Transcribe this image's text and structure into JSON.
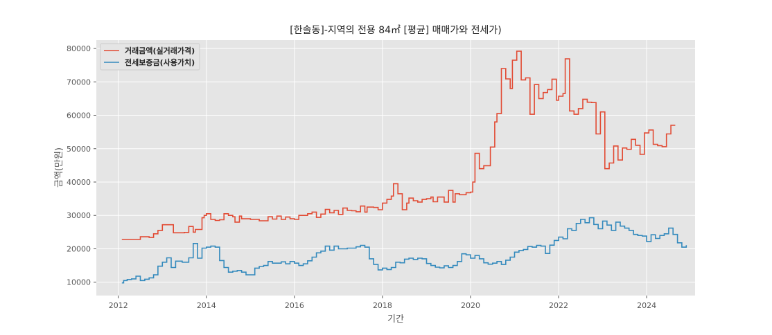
{
  "chart_data": {
    "type": "line",
    "step": true,
    "title": "[한솔동]-지역의 전용 84㎡ [평균] 매매가와 전세가)",
    "xlabel": "기간",
    "ylabel": "금액(만원)",
    "xlim": [
      2011.5,
      2025.1
    ],
    "ylim": [
      6000,
      82500
    ],
    "xticks": [
      2012,
      2014,
      2016,
      2018,
      2020,
      2022,
      2024
    ],
    "xtick_labels": [
      "2012",
      "2014",
      "2016",
      "2018",
      "2020",
      "2022",
      "2024"
    ],
    "yticks": [
      10000,
      20000,
      30000,
      40000,
      50000,
      60000,
      70000,
      80000
    ],
    "ytick_labels": [
      "10000",
      "20000",
      "30000",
      "40000",
      "50000",
      "60000",
      "70000",
      "80000"
    ],
    "grid": true,
    "legend_position": "upper-left",
    "colors": {
      "plot_background": "#e5e5e5",
      "grid": "#ffffff"
    },
    "series": [
      {
        "name": "거래금액(실거래가격)",
        "color": "#e24a33",
        "points": [
          [
            2012.08,
            22800
          ],
          [
            2012.5,
            23600
          ],
          [
            2012.7,
            23400
          ],
          [
            2012.8,
            24500
          ],
          [
            2012.9,
            25500
          ],
          [
            2013.0,
            27200
          ],
          [
            2013.25,
            24800
          ],
          [
            2013.5,
            24900
          ],
          [
            2013.6,
            26700
          ],
          [
            2013.7,
            25000
          ],
          [
            2013.75,
            25800
          ],
          [
            2013.9,
            29300
          ],
          [
            2013.95,
            30000
          ],
          [
            2014.0,
            30500
          ],
          [
            2014.1,
            28800
          ],
          [
            2014.2,
            28500
          ],
          [
            2014.3,
            28700
          ],
          [
            2014.4,
            30500
          ],
          [
            2014.5,
            30000
          ],
          [
            2014.6,
            29600
          ],
          [
            2014.65,
            28000
          ],
          [
            2014.75,
            29800
          ],
          [
            2014.8,
            29000
          ],
          [
            2015.0,
            28800
          ],
          [
            2015.2,
            28400
          ],
          [
            2015.4,
            29600
          ],
          [
            2015.5,
            28900
          ],
          [
            2015.6,
            29800
          ],
          [
            2015.7,
            28800
          ],
          [
            2015.8,
            29500
          ],
          [
            2015.9,
            29000
          ],
          [
            2016.0,
            28800
          ],
          [
            2016.1,
            30000
          ],
          [
            2016.3,
            30500
          ],
          [
            2016.4,
            31000
          ],
          [
            2016.5,
            29400
          ],
          [
            2016.6,
            30400
          ],
          [
            2016.7,
            31800
          ],
          [
            2016.8,
            30800
          ],
          [
            2016.9,
            31500
          ],
          [
            2017.0,
            30300
          ],
          [
            2017.1,
            32200
          ],
          [
            2017.2,
            31500
          ],
          [
            2017.3,
            31400
          ],
          [
            2017.4,
            31100
          ],
          [
            2017.5,
            32800
          ],
          [
            2017.6,
            31000
          ],
          [
            2017.65,
            32500
          ],
          [
            2017.8,
            32400
          ],
          [
            2017.9,
            31700
          ],
          [
            2018.0,
            33700
          ],
          [
            2018.1,
            34800
          ],
          [
            2018.2,
            35800
          ],
          [
            2018.25,
            39500
          ],
          [
            2018.35,
            36500
          ],
          [
            2018.45,
            31700
          ],
          [
            2018.55,
            33700
          ],
          [
            2018.6,
            35200
          ],
          [
            2018.7,
            34400
          ],
          [
            2018.8,
            34000
          ],
          [
            2018.9,
            34800
          ],
          [
            2019.0,
            35000
          ],
          [
            2019.1,
            35500
          ],
          [
            2019.15,
            34100
          ],
          [
            2019.25,
            35500
          ],
          [
            2019.4,
            34000
          ],
          [
            2019.5,
            37500
          ],
          [
            2019.6,
            34000
          ],
          [
            2019.65,
            36500
          ],
          [
            2019.75,
            36200
          ],
          [
            2019.9,
            36800
          ],
          [
            2020.0,
            37000
          ],
          [
            2020.05,
            40000
          ],
          [
            2020.1,
            48600
          ],
          [
            2020.2,
            44000
          ],
          [
            2020.3,
            44900
          ],
          [
            2020.45,
            50500
          ],
          [
            2020.55,
            58000
          ],
          [
            2020.6,
            60500
          ],
          [
            2020.7,
            74000
          ],
          [
            2020.8,
            70900
          ],
          [
            2020.9,
            68000
          ],
          [
            2020.95,
            76500
          ],
          [
            2021.05,
            79200
          ],
          [
            2021.15,
            70600
          ],
          [
            2021.25,
            71200
          ],
          [
            2021.35,
            60300
          ],
          [
            2021.45,
            69200
          ],
          [
            2021.55,
            65000
          ],
          [
            2021.65,
            66800
          ],
          [
            2021.75,
            67700
          ],
          [
            2021.85,
            70800
          ],
          [
            2021.95,
            64500
          ],
          [
            2022.0,
            65700
          ],
          [
            2022.1,
            66500
          ],
          [
            2022.15,
            76900
          ],
          [
            2022.25,
            61300
          ],
          [
            2022.35,
            60300
          ],
          [
            2022.45,
            62000
          ],
          [
            2022.55,
            64800
          ],
          [
            2022.65,
            63900
          ],
          [
            2022.75,
            63800
          ],
          [
            2022.85,
            54400
          ],
          [
            2022.95,
            61000
          ],
          [
            2023.05,
            44000
          ],
          [
            2023.15,
            45700
          ],
          [
            2023.25,
            50800
          ],
          [
            2023.35,
            46600
          ],
          [
            2023.45,
            50200
          ],
          [
            2023.55,
            49800
          ],
          [
            2023.65,
            52800
          ],
          [
            2023.75,
            51000
          ],
          [
            2023.85,
            48300
          ],
          [
            2023.95,
            54700
          ],
          [
            2024.05,
            55600
          ],
          [
            2024.15,
            51300
          ],
          [
            2024.25,
            50900
          ],
          [
            2024.35,
            50600
          ],
          [
            2024.45,
            54400
          ],
          [
            2024.55,
            57000
          ],
          [
            2024.65,
            57000
          ]
        ]
      },
      {
        "name": "전세보증금(사용가치)",
        "color": "#348abd",
        "points": [
          [
            2012.08,
            9800
          ],
          [
            2012.12,
            10500
          ],
          [
            2012.2,
            10800
          ],
          [
            2012.3,
            11000
          ],
          [
            2012.4,
            11800
          ],
          [
            2012.5,
            10500
          ],
          [
            2012.6,
            10900
          ],
          [
            2012.7,
            11300
          ],
          [
            2012.8,
            12200
          ],
          [
            2012.9,
            14800
          ],
          [
            2013.0,
            16000
          ],
          [
            2013.1,
            17300
          ],
          [
            2013.2,
            14400
          ],
          [
            2013.3,
            16300
          ],
          [
            2013.45,
            16000
          ],
          [
            2013.6,
            17300
          ],
          [
            2013.7,
            21600
          ],
          [
            2013.8,
            17200
          ],
          [
            2013.9,
            20200
          ],
          [
            2014.0,
            20500
          ],
          [
            2014.1,
            20800
          ],
          [
            2014.2,
            20500
          ],
          [
            2014.3,
            16500
          ],
          [
            2014.4,
            14400
          ],
          [
            2014.5,
            13000
          ],
          [
            2014.6,
            13300
          ],
          [
            2014.7,
            13500
          ],
          [
            2014.8,
            13000
          ],
          [
            2014.9,
            12200
          ],
          [
            2015.1,
            14200
          ],
          [
            2015.2,
            14700
          ],
          [
            2015.3,
            15000
          ],
          [
            2015.4,
            16200
          ],
          [
            2015.5,
            15700
          ],
          [
            2015.7,
            16100
          ],
          [
            2015.8,
            15500
          ],
          [
            2015.9,
            16200
          ],
          [
            2016.0,
            15700
          ],
          [
            2016.1,
            15000
          ],
          [
            2016.2,
            15500
          ],
          [
            2016.3,
            16400
          ],
          [
            2016.4,
            17500
          ],
          [
            2016.5,
            18800
          ],
          [
            2016.6,
            19300
          ],
          [
            2016.7,
            20800
          ],
          [
            2016.8,
            19600
          ],
          [
            2016.9,
            20800
          ],
          [
            2017.0,
            20000
          ],
          [
            2017.2,
            20200
          ],
          [
            2017.4,
            20600
          ],
          [
            2017.5,
            21000
          ],
          [
            2017.6,
            20500
          ],
          [
            2017.7,
            17000
          ],
          [
            2017.8,
            15300
          ],
          [
            2017.9,
            13700
          ],
          [
            2018.0,
            14200
          ],
          [
            2018.1,
            13800
          ],
          [
            2018.2,
            14400
          ],
          [
            2018.3,
            16000
          ],
          [
            2018.4,
            15800
          ],
          [
            2018.5,
            16900
          ],
          [
            2018.6,
            17200
          ],
          [
            2018.7,
            16800
          ],
          [
            2018.8,
            17200
          ],
          [
            2018.9,
            17000
          ],
          [
            2019.0,
            15600
          ],
          [
            2019.1,
            15000
          ],
          [
            2019.2,
            14500
          ],
          [
            2019.3,
            14300
          ],
          [
            2019.4,
            14900
          ],
          [
            2019.5,
            14400
          ],
          [
            2019.6,
            15000
          ],
          [
            2019.7,
            16200
          ],
          [
            2019.8,
            18500
          ],
          [
            2019.9,
            18200
          ],
          [
            2020.0,
            17200
          ],
          [
            2020.1,
            18000
          ],
          [
            2020.2,
            17000
          ],
          [
            2020.3,
            15800
          ],
          [
            2020.4,
            15400
          ],
          [
            2020.5,
            15700
          ],
          [
            2020.6,
            16200
          ],
          [
            2020.7,
            15300
          ],
          [
            2020.8,
            16600
          ],
          [
            2020.9,
            17500
          ],
          [
            2021.0,
            19000
          ],
          [
            2021.1,
            19500
          ],
          [
            2021.2,
            19800
          ],
          [
            2021.3,
            20700
          ],
          [
            2021.4,
            20500
          ],
          [
            2021.5,
            21000
          ],
          [
            2021.6,
            20800
          ],
          [
            2021.7,
            18600
          ],
          [
            2021.8,
            21100
          ],
          [
            2021.9,
            22500
          ],
          [
            2022.0,
            23500
          ],
          [
            2022.1,
            23000
          ],
          [
            2022.2,
            26000
          ],
          [
            2022.3,
            25500
          ],
          [
            2022.4,
            27600
          ],
          [
            2022.5,
            28800
          ],
          [
            2022.6,
            27800
          ],
          [
            2022.7,
            29300
          ],
          [
            2022.8,
            27300
          ],
          [
            2022.9,
            26000
          ],
          [
            2023.0,
            28300
          ],
          [
            2023.1,
            27100
          ],
          [
            2023.2,
            25500
          ],
          [
            2023.3,
            28000
          ],
          [
            2023.4,
            26800
          ],
          [
            2023.5,
            26200
          ],
          [
            2023.6,
            25500
          ],
          [
            2023.7,
            24300
          ],
          [
            2023.8,
            24000
          ],
          [
            2023.9,
            23800
          ],
          [
            2024.0,
            22200
          ],
          [
            2024.1,
            24200
          ],
          [
            2024.2,
            23100
          ],
          [
            2024.3,
            24000
          ],
          [
            2024.4,
            24500
          ],
          [
            2024.5,
            26200
          ],
          [
            2024.6,
            24300
          ],
          [
            2024.7,
            21800
          ],
          [
            2024.8,
            20500
          ],
          [
            2024.9,
            21100
          ]
        ]
      }
    ]
  }
}
